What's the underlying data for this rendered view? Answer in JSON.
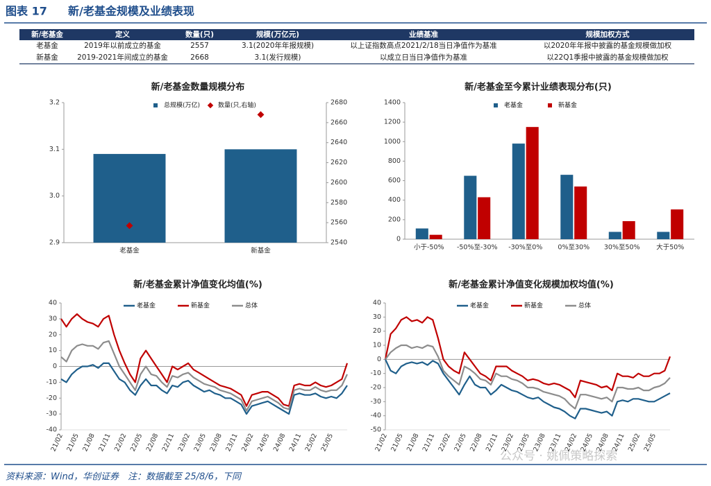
{
  "header": {
    "figure_label": "图表 17",
    "title": "新/老基金规模及业绩表现"
  },
  "table": {
    "headers": [
      "新/老基金",
      "定义",
      "数量(只)",
      "规模(万亿元)",
      "业绩基准",
      "规模加权方式"
    ],
    "rows": [
      [
        "老基金",
        "2019年以前成立的基金",
        "2557",
        "3.1(2020年年报规模)",
        "以上证指数高点2021/2/18当日净值作为基准",
        "以2020年年报中披露的基金规模做加权"
      ],
      [
        "新基金",
        "2019-2021年间成立的基金",
        "2668",
        "3.1(发行规模)",
        "以成立日当日净值作为基准",
        "以22Q1季报中披露的基金规模做加权"
      ]
    ]
  },
  "chart_data": [
    {
      "type": "bar",
      "title": "新/老基金数量规模分布",
      "categories": [
        "老基金",
        "新基金"
      ],
      "series": [
        {
          "name": "总规模(万亿)",
          "color": "#1f5f8b",
          "values": [
            3.09,
            3.1
          ]
        },
        {
          "name": "数量(只,右轴)",
          "color": "#c00000",
          "type": "scatter",
          "axis": "y2",
          "values": [
            2557,
            2668
          ]
        }
      ],
      "ylim": [
        2.9,
        3.2
      ],
      "yticks": [
        2.9,
        {
          "value": 3,
          "label": "3.0"
        },
        3.1,
        3.2
      ],
      "y2lim": [
        2540,
        2680
      ],
      "y2ticks": [
        2540,
        2560,
        2580,
        2600,
        2620,
        2640,
        2660,
        2680
      ]
    },
    {
      "type": "bar",
      "title": "新/老基金至今累计业绩表现分布(只)",
      "categories": [
        "小于-50%",
        "-50%至-30%",
        "-30%至0%",
        "0%至30%",
        "30%至50%",
        "大于50%"
      ],
      "series": [
        {
          "name": "老基金",
          "color": "#1f5f8b",
          "values": [
            110,
            650,
            980,
            660,
            75,
            75
          ]
        },
        {
          "name": "新基金",
          "color": "#c00000",
          "values": [
            45,
            430,
            1150,
            540,
            185,
            305
          ]
        }
      ],
      "ylim": [
        0,
        1400
      ],
      "yticks": [
        0,
        200,
        400,
        600,
        800,
        1000,
        1200,
        1400
      ]
    },
    {
      "type": "line",
      "title": "新/老基金累计净值变化均值(%)",
      "categories": [
        "21/02",
        null,
        null,
        "21/05",
        null,
        null,
        "21/08",
        null,
        null,
        "21/11",
        null,
        null,
        "22/02",
        null,
        null,
        "22/05",
        null,
        null,
        "22/08",
        null,
        null,
        "22/11",
        null,
        null,
        "23/02",
        null,
        null,
        "23/05",
        null,
        null,
        "23/08",
        null,
        null,
        "23/11",
        null,
        null,
        "24/02",
        null,
        null,
        "24/05",
        null,
        null,
        "24/08",
        null,
        null,
        "24/11",
        null,
        null,
        "25/02",
        null,
        null,
        "25/05",
        null,
        null,
        null
      ],
      "series": [
        {
          "name": "老基金",
          "color": "#1f5f8b",
          "values": [
            -8,
            -10,
            -5,
            -2,
            0,
            0,
            1,
            -1,
            2,
            2,
            -3,
            -8,
            -10,
            -15,
            -18,
            -12,
            -8,
            -12,
            -12,
            -15,
            -17,
            -12,
            -13,
            -10,
            -9,
            -12,
            -14,
            -16,
            -15,
            -17,
            -18,
            -20,
            -20,
            -22,
            -24,
            -30,
            -25,
            -24,
            -23,
            -22,
            -24,
            -26,
            -28,
            -30,
            -18,
            -17,
            -18,
            -18,
            -17,
            -19,
            -20,
            -19,
            -20,
            -17,
            -12
          ]
        },
        {
          "name": "新基金",
          "color": "#c00000",
          "values": [
            30,
            25,
            30,
            33,
            30,
            28,
            27,
            25,
            30,
            32,
            20,
            10,
            2,
            -5,
            -10,
            5,
            10,
            5,
            0,
            -5,
            -10,
            0,
            -2,
            0,
            2,
            -2,
            -4,
            -6,
            -8,
            -10,
            -12,
            -13,
            -14,
            -16,
            -18,
            -25,
            -18,
            -17,
            -16,
            -16,
            -18,
            -20,
            -24,
            -25,
            -12,
            -11,
            -12,
            -12,
            -10,
            -12,
            -13,
            -12,
            -10,
            -8,
            2
          ]
        },
        {
          "name": "总体",
          "color": "#8c8c8c",
          "values": [
            6,
            3,
            10,
            13,
            14,
            13,
            13,
            11,
            15,
            16,
            8,
            0,
            -5,
            -10,
            -15,
            -5,
            0,
            -5,
            -6,
            -10,
            -13,
            -6,
            -7,
            -5,
            -4,
            -7,
            -9,
            -11,
            -12,
            -13,
            -15,
            -16,
            -17,
            -19,
            -21,
            -28,
            -22,
            -21,
            -20,
            -19,
            -21,
            -23,
            -26,
            -27,
            -15,
            -14,
            -15,
            -15,
            -13,
            -15,
            -16,
            -15,
            -15,
            -12,
            -5
          ]
        }
      ],
      "ylim": [
        -40,
        40
      ],
      "yticks": [
        -40,
        -30,
        -20,
        -10,
        0,
        10,
        20,
        30,
        40
      ]
    },
    {
      "type": "line",
      "title": "新/老基金累计净值变化规模加权均值(%)",
      "categories": [
        "21/02",
        null,
        null,
        "21/05",
        null,
        null,
        "21/08",
        null,
        null,
        "21/11",
        null,
        null,
        "22/02",
        null,
        null,
        "22/05",
        null,
        null,
        "22/08",
        null,
        null,
        "22/11",
        null,
        null,
        "23/02",
        null,
        null,
        "23/05",
        null,
        null,
        "23/08",
        null,
        null,
        "23/11",
        null,
        null,
        "24/02",
        null,
        null,
        "24/05",
        null,
        null,
        "24/08",
        null,
        null,
        "24/11",
        null,
        null,
        "25/02",
        null,
        null,
        "25/05",
        null,
        null,
        null
      ],
      "series": [
        {
          "name": "老基金",
          "color": "#1f5f8b",
          "values": [
            0,
            -8,
            -10,
            -5,
            -3,
            -2,
            -3,
            -2,
            -4,
            -1,
            -3,
            -10,
            -15,
            -20,
            -25,
            -18,
            -12,
            -18,
            -20,
            -20,
            -25,
            -22,
            -18,
            -20,
            -22,
            -23,
            -25,
            -27,
            -28,
            -27,
            -30,
            -32,
            -34,
            -35,
            -37,
            -40,
            -42,
            -35,
            -35,
            -36,
            -37,
            -38,
            -37,
            -40,
            -30,
            -29,
            -30,
            -28,
            -28,
            -29,
            -30,
            -30,
            -28,
            -26,
            -24
          ]
        },
        {
          "name": "新基金",
          "color": "#c00000",
          "values": [
            0,
            18,
            22,
            28,
            30,
            27,
            28,
            26,
            30,
            28,
            15,
            0,
            -5,
            -8,
            -10,
            5,
            0,
            -5,
            -10,
            -12,
            -15,
            -5,
            -5,
            -5,
            -8,
            -10,
            -12,
            -15,
            -14,
            -15,
            -17,
            -18,
            -17,
            -18,
            -20,
            -22,
            -27,
            -15,
            -16,
            -17,
            -18,
            -20,
            -19,
            -22,
            -10,
            -12,
            -12,
            -13,
            -10,
            -12,
            -12,
            -10,
            -10,
            -8,
            2
          ]
        },
        {
          "name": "总体",
          "color": "#8c8c8c",
          "values": [
            0,
            5,
            8,
            10,
            10,
            8,
            9,
            8,
            10,
            9,
            2,
            -8,
            -12,
            -15,
            -18,
            -5,
            -7,
            -10,
            -14,
            -15,
            -18,
            -10,
            -12,
            -12,
            -14,
            -15,
            -17,
            -20,
            -20,
            -21,
            -23,
            -24,
            -25,
            -26,
            -28,
            -32,
            -35,
            -25,
            -25,
            -26,
            -27,
            -28,
            -27,
            -30,
            -20,
            -20,
            -21,
            -21,
            -20,
            -22,
            -22,
            -20,
            -19,
            -17,
            -13
          ]
        }
      ],
      "ylim": [
        -50,
        40
      ],
      "yticks": [
        -50,
        -40,
        -30,
        -20,
        -10,
        0,
        10,
        20,
        30,
        40
      ]
    }
  ],
  "footer": {
    "source": "资料来源：Wind，华创证券　注：数据截至 25/8/6，下同",
    "watermark": "公众号 · 姚佩策略探索"
  }
}
